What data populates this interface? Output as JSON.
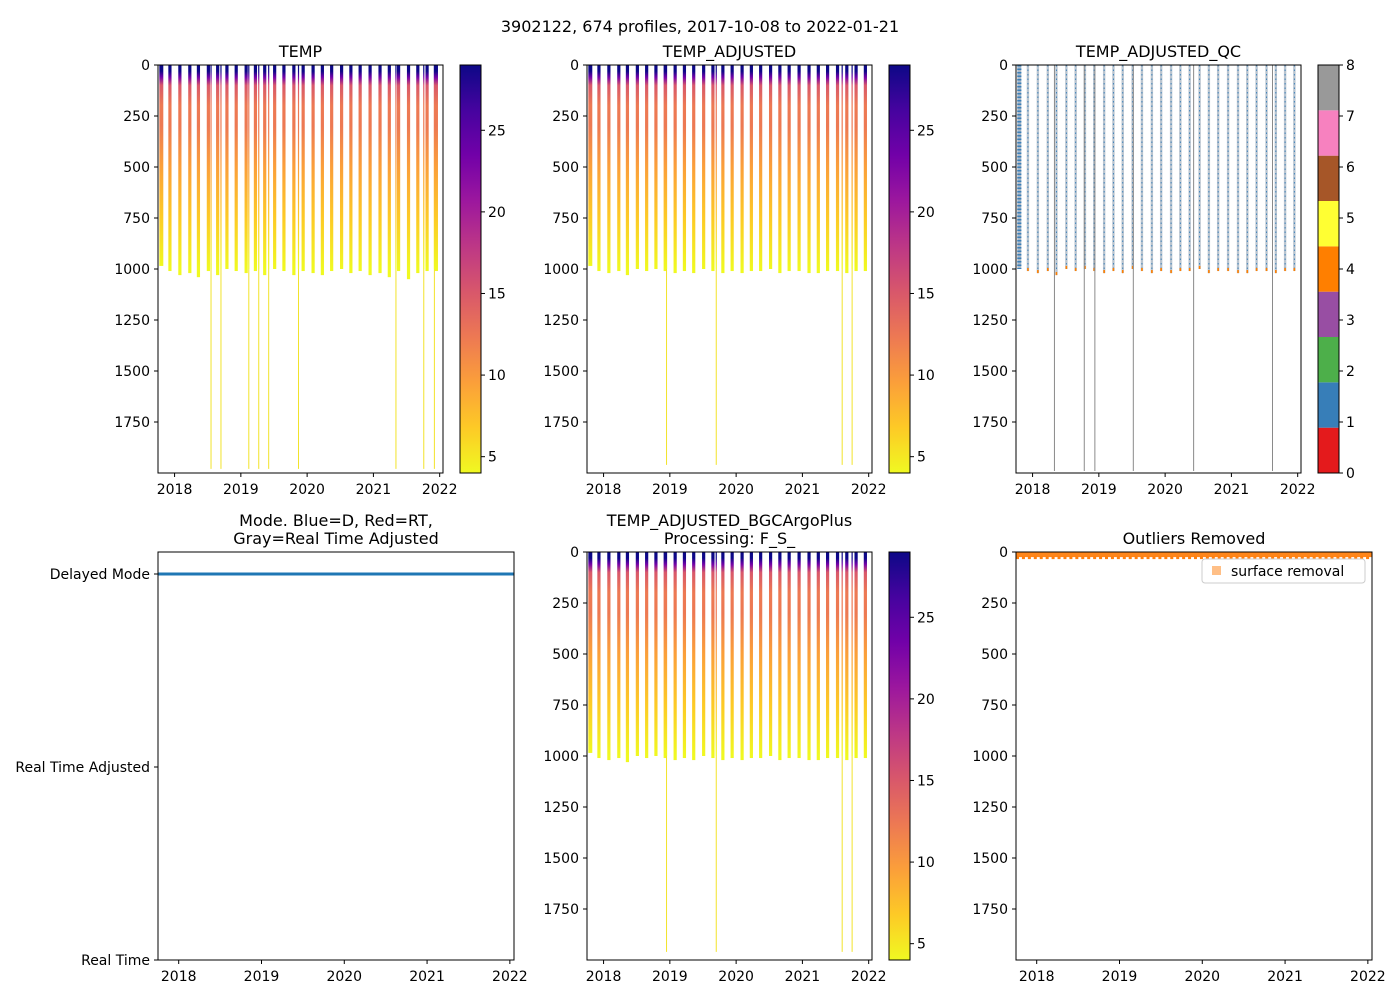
{
  "figure": {
    "suptitle": "3902122, 674 profiles, 2017-10-08 to 2022-01-21"
  },
  "colors": {
    "plasma_r": [
      "#f0f921",
      "#fdca26",
      "#fb9f3a",
      "#ed7953",
      "#d8576b",
      "#bd3786",
      "#9c179e",
      "#7201a8",
      "#46039f",
      "#0d0887"
    ],
    "qc": [
      "#e41a1c",
      "#377eb8",
      "#4daf4a",
      "#984ea3",
      "#ff7f00",
      "#ffff33",
      "#a65628",
      "#f781bf",
      "#999999"
    ],
    "mode_line": "#1f77b4",
    "outlier": "#ff7f0e"
  },
  "chart_data": [
    {
      "id": "temp",
      "type": "heatmap",
      "title": "TEMP",
      "xlim": [
        2017.75,
        2022.05
      ],
      "ylim": [
        2000,
        0
      ],
      "xticks": [
        2018,
        2019,
        2020,
        2021,
        2022
      ],
      "xticklabels": [
        "2018",
        "2019",
        "2020",
        "2021",
        "2022"
      ],
      "yticks": [
        0,
        250,
        500,
        750,
        1000,
        1250,
        1500,
        1750
      ],
      "yticklabels": [
        "0",
        "250",
        "500",
        "750",
        "1000",
        "1250",
        "1500",
        "1750"
      ],
      "colorbar": {
        "label": "",
        "range": [
          4,
          29
        ],
        "ticks": [
          5,
          10,
          15,
          20,
          25
        ],
        "ticklabels": [
          "5",
          "10",
          "15",
          "20",
          "25"
        ]
      },
      "dense_period": [
        2017.77,
        2017.83
      ],
      "profile_times": [
        2017.93,
        2018.08,
        2018.23,
        2018.36,
        2018.51,
        2018.65,
        2018.79,
        2018.93,
        2019.08,
        2019.22,
        2019.36,
        2019.51,
        2019.65,
        2019.8,
        2019.94,
        2020.09,
        2020.23,
        2020.37,
        2020.52,
        2020.66,
        2020.8,
        2020.95,
        2021.1,
        2021.24,
        2021.38,
        2021.53,
        2021.67,
        2021.81,
        2021.95
      ],
      "profile_max_depths": [
        1010,
        1030,
        1020,
        1040,
        1010,
        1030,
        1000,
        1010,
        1020,
        1010,
        1030,
        1000,
        1010,
        1030,
        1010,
        1020,
        1030,
        1010,
        1000,
        1020,
        1010,
        1030,
        1020,
        1040,
        1010,
        1050,
        1020,
        1010,
        1010
      ],
      "deep_profile_times": [
        2018.55,
        2018.7,
        2019.12,
        2019.27,
        2019.42,
        2019.87,
        2021.34,
        2021.76,
        2021.92
      ],
      "deep_max_depth": 1980
    },
    {
      "id": "temp_adj",
      "type": "heatmap",
      "title": "TEMP_ADJUSTED",
      "xlim": [
        2017.75,
        2022.05
      ],
      "ylim": [
        2000,
        0
      ],
      "xticks": [
        2018,
        2019,
        2020,
        2021,
        2022
      ],
      "xticklabels": [
        "2018",
        "2019",
        "2020",
        "2021",
        "2022"
      ],
      "yticks": [
        0,
        250,
        500,
        750,
        1000,
        1250,
        1500,
        1750
      ],
      "yticklabels": [
        "0",
        "250",
        "500",
        "750",
        "1000",
        "1250",
        "1500",
        "1750"
      ],
      "colorbar": {
        "label": "",
        "range": [
          4,
          29
        ],
        "ticks": [
          5,
          10,
          15,
          20,
          25
        ],
        "ticklabels": [
          "5",
          "10",
          "15",
          "20",
          "25"
        ]
      },
      "dense_period": [
        2017.77,
        2017.83
      ],
      "profile_times": [
        2017.93,
        2018.08,
        2018.23,
        2018.36,
        2018.51,
        2018.65,
        2018.79,
        2018.93,
        2019.08,
        2019.22,
        2019.36,
        2019.51,
        2019.65,
        2019.8,
        2019.94,
        2020.09,
        2020.23,
        2020.37,
        2020.52,
        2020.66,
        2020.8,
        2020.95,
        2021.1,
        2021.24,
        2021.38,
        2021.53,
        2021.67,
        2021.81,
        2021.95
      ],
      "profile_max_depths": [
        1010,
        1020,
        1010,
        1030,
        1000,
        1010,
        1000,
        1010,
        1020,
        1010,
        1020,
        1000,
        1010,
        1020,
        1010,
        1020,
        1010,
        1010,
        1000,
        1020,
        1010,
        1010,
        1020,
        1020,
        1010,
        1010,
        1020,
        1010,
        1010
      ],
      "deep_profile_times": [
        2018.95,
        2019.7,
        2021.6,
        2021.75
      ],
      "deep_max_depth": 1960
    },
    {
      "id": "temp_adj_qc",
      "type": "heatmap",
      "title": "TEMP_ADJUSTED_QC",
      "xlim": [
        2017.75,
        2022.05
      ],
      "ylim": [
        2000,
        0
      ],
      "xticks": [
        2018,
        2019,
        2020,
        2021,
        2022
      ],
      "xticklabels": [
        "2018",
        "2019",
        "2020",
        "2021",
        "2022"
      ],
      "yticks": [
        0,
        250,
        500,
        750,
        1000,
        1250,
        1500,
        1750
      ],
      "yticklabels": [
        "0",
        "250",
        "500",
        "750",
        "1000",
        "1250",
        "1500",
        "1750"
      ],
      "colorbar": {
        "label": "",
        "range": [
          0,
          8
        ],
        "ticks": [
          0,
          1,
          2,
          3,
          4,
          5,
          6,
          7,
          8
        ],
        "ticklabels": [
          "0",
          "1",
          "2",
          "3",
          "4",
          "5",
          "6",
          "7",
          "8"
        ]
      },
      "dense_period": [
        2017.77,
        2017.83
      ],
      "profile_times": [
        2017.93,
        2018.08,
        2018.23,
        2018.36,
        2018.51,
        2018.65,
        2018.79,
        2018.93,
        2019.08,
        2019.22,
        2019.36,
        2019.51,
        2019.65,
        2019.8,
        2019.94,
        2020.09,
        2020.23,
        2020.37,
        2020.52,
        2020.66,
        2020.8,
        2020.95,
        2021.1,
        2021.24,
        2021.38,
        2021.53,
        2021.67,
        2021.81,
        2021.95
      ],
      "profile_max_depths": [
        1010,
        1020,
        1010,
        1030,
        1000,
        1010,
        1000,
        1010,
        1020,
        1010,
        1020,
        1000,
        1010,
        1020,
        1010,
        1020,
        1010,
        1010,
        1000,
        1020,
        1010,
        1010,
        1020,
        1020,
        1010,
        1010,
        1020,
        1010,
        1010
      ],
      "deep_profile_times": [
        2018.33,
        2018.78,
        2018.94,
        2019.52,
        2020.43,
        2021.62
      ],
      "deep_max_depth": 1990
    },
    {
      "id": "mode",
      "type": "line",
      "title": "Mode. Blue=D, Red=RT,\nGray=Real Time Adjusted",
      "xlim": [
        2017.75,
        2022.05
      ],
      "xticks": [
        2018,
        2019,
        2020,
        2021,
        2022
      ],
      "xticklabels": [
        "2018",
        "2019",
        "2020",
        "2021",
        "2022"
      ],
      "yticklabels": [
        "Delayed Mode",
        "Real Time Adjusted",
        "Real Time"
      ],
      "series": [
        {
          "name": "Delayed Mode",
          "x": [
            2017.75,
            2022.05
          ],
          "y": [
            2,
            2
          ]
        }
      ]
    },
    {
      "id": "bgc",
      "type": "heatmap",
      "title": "TEMP_ADJUSTED_BGCArgoPlus\nProcessing: F_S_",
      "xlim": [
        2017.75,
        2022.05
      ],
      "ylim": [
        2000,
        0
      ],
      "xticks": [
        2018,
        2019,
        2020,
        2021,
        2022
      ],
      "xticklabels": [
        "2018",
        "2019",
        "2020",
        "2021",
        "2022"
      ],
      "yticks": [
        0,
        250,
        500,
        750,
        1000,
        1250,
        1500,
        1750
      ],
      "yticklabels": [
        "0",
        "250",
        "500",
        "750",
        "1000",
        "1250",
        "1500",
        "1750"
      ],
      "colorbar": {
        "label": "",
        "range": [
          4,
          29
        ],
        "ticks": [
          5,
          10,
          15,
          20,
          25
        ],
        "ticklabels": [
          "5",
          "10",
          "15",
          "20",
          "25"
        ]
      },
      "dense_period": [
        2017.77,
        2017.83
      ],
      "profile_times": [
        2017.93,
        2018.08,
        2018.23,
        2018.36,
        2018.51,
        2018.65,
        2018.79,
        2018.93,
        2019.08,
        2019.22,
        2019.36,
        2019.51,
        2019.65,
        2019.8,
        2019.94,
        2020.09,
        2020.23,
        2020.37,
        2020.52,
        2020.66,
        2020.8,
        2020.95,
        2021.1,
        2021.24,
        2021.38,
        2021.53,
        2021.67,
        2021.81,
        2021.95
      ],
      "profile_max_depths": [
        1010,
        1020,
        1010,
        1030,
        1000,
        1010,
        1000,
        1010,
        1020,
        1010,
        1020,
        1000,
        1010,
        1020,
        1010,
        1020,
        1010,
        1010,
        1000,
        1020,
        1010,
        1010,
        1020,
        1020,
        1010,
        1010,
        1020,
        1010,
        1010
      ],
      "deep_profile_times": [
        2018.95,
        2019.7,
        2021.6,
        2021.75
      ],
      "deep_max_depth": 1960
    },
    {
      "id": "outliers",
      "type": "scatter",
      "title": "Outliers Removed",
      "xlim": [
        2017.75,
        2022.05
      ],
      "ylim": [
        2000,
        0
      ],
      "xticks": [
        2018,
        2019,
        2020,
        2021,
        2022
      ],
      "xticklabels": [
        "2018",
        "2019",
        "2020",
        "2021",
        "2022"
      ],
      "yticks": [
        0,
        250,
        500,
        750,
        1000,
        1250,
        1500,
        1750
      ],
      "yticklabels": [
        "0",
        "250",
        "500",
        "750",
        "1000",
        "1250",
        "1500",
        "1750"
      ],
      "legend": {
        "position": "upper-right",
        "entries": [
          "surface removal"
        ]
      },
      "series": [
        {
          "name": "surface removal",
          "x_range": [
            2017.75,
            2022.05
          ],
          "depth_range": [
            0,
            25
          ]
        }
      ]
    }
  ]
}
